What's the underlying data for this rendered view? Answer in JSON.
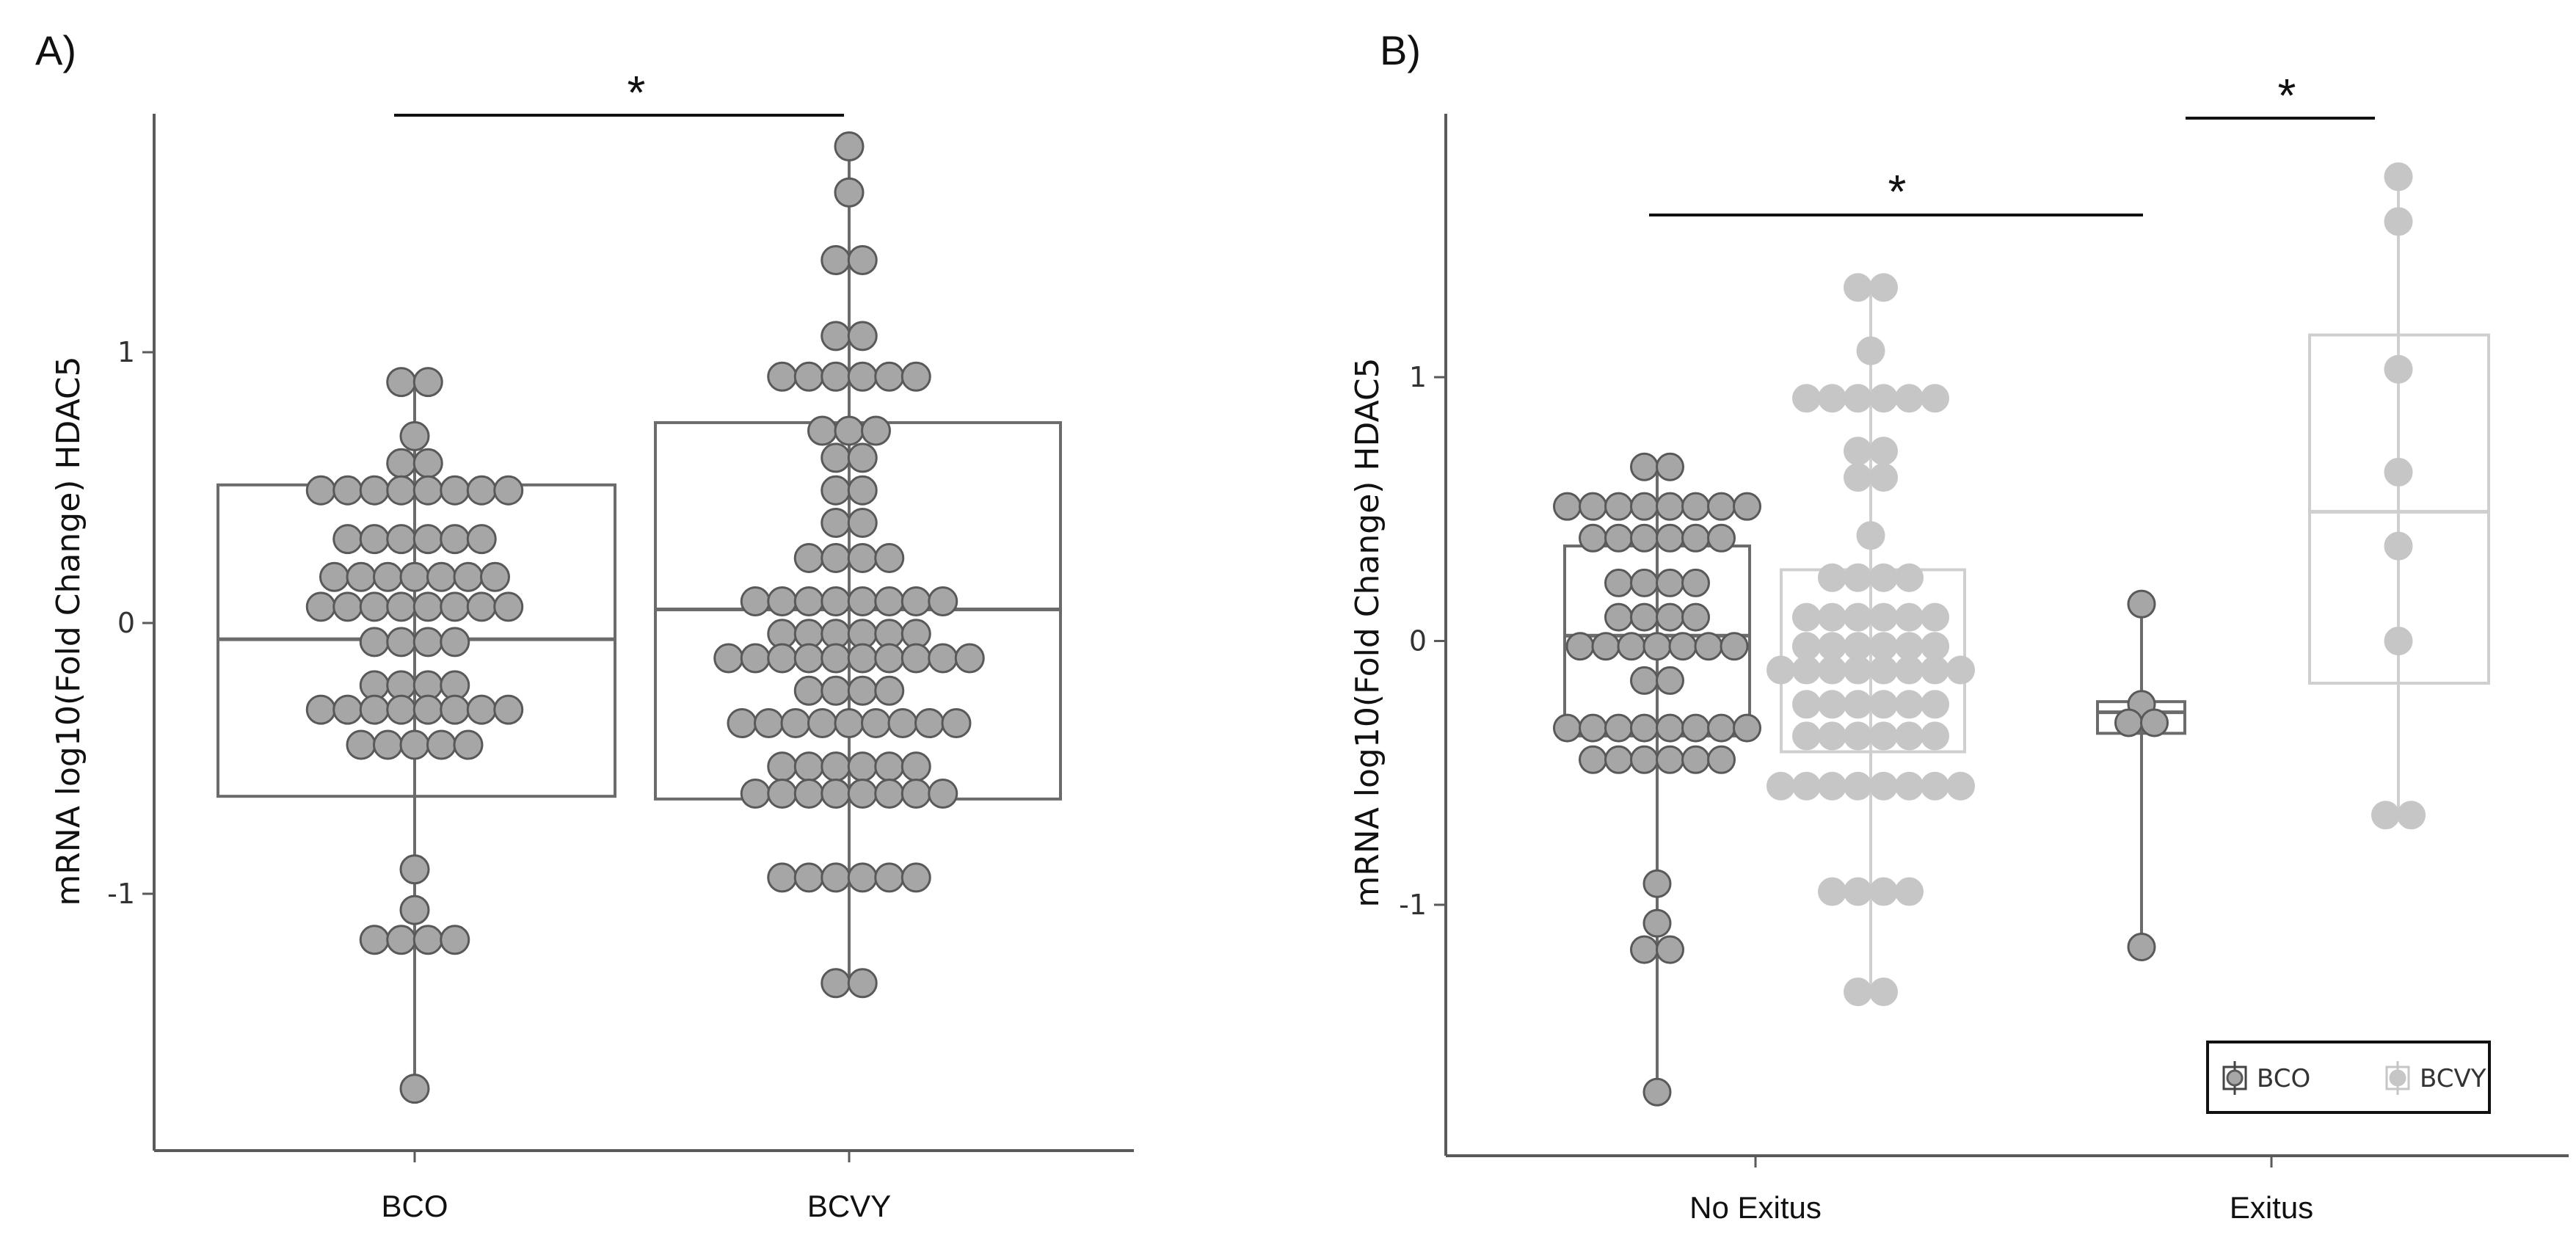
{
  "chart_data": [
    {
      "id": "A",
      "panel_label": "A)",
      "type": "box",
      "ylabel": "mRNA log10(Fold Change) HDAC5",
      "ylim": [
        -1.85,
        1.85
      ],
      "yticks": [
        {
          "v": 1,
          "label": "1"
        },
        {
          "v": 0,
          "label": "0"
        },
        {
          "v": -1,
          "label": "-1"
        }
      ],
      "categories": [
        "BCO",
        "BCVY"
      ],
      "colors": {
        "fill": "#a6a6a6",
        "stroke": "#595959",
        "box": "#6b6b6b",
        "axis": "#5a5a5a"
      },
      "series": [
        {
          "name": "BCO",
          "box": {
            "q1": -0.64,
            "median": -0.06,
            "q3": 0.51,
            "whisker_low": -1.72,
            "whisker_high": 0.89
          },
          "points": [
            {
              "y": 0.89,
              "n": 2
            },
            {
              "y": 0.69,
              "n": 1
            },
            {
              "y": 0.59,
              "n": 2
            },
            {
              "y": 0.49,
              "n": 8
            },
            {
              "y": 0.31,
              "n": 6
            },
            {
              "y": 0.17,
              "n": 7
            },
            {
              "y": 0.06,
              "n": 8
            },
            {
              "y": -0.07,
              "n": 4
            },
            {
              "y": -0.23,
              "n": 4
            },
            {
              "y": -0.32,
              "n": 8
            },
            {
              "y": -0.45,
              "n": 5
            },
            {
              "y": -0.91,
              "n": 1
            },
            {
              "y": -1.06,
              "n": 1
            },
            {
              "y": -1.17,
              "n": 4
            },
            {
              "y": -1.72,
              "n": 1
            }
          ]
        },
        {
          "name": "BCVY",
          "box": {
            "q1": -0.65,
            "median": 0.05,
            "q3": 0.74,
            "whisker_low": -1.33,
            "whisker_high": 1.76
          },
          "points": [
            {
              "y": 1.76,
              "n": 1
            },
            {
              "y": 1.59,
              "n": 1
            },
            {
              "y": 1.34,
              "n": 2
            },
            {
              "y": 1.06,
              "n": 2
            },
            {
              "y": 0.91,
              "n": 6
            },
            {
              "y": 0.71,
              "n": 3
            },
            {
              "y": 0.61,
              "n": 2
            },
            {
              "y": 0.49,
              "n": 2
            },
            {
              "y": 0.37,
              "n": 2
            },
            {
              "y": 0.24,
              "n": 4
            },
            {
              "y": 0.08,
              "n": 8
            },
            {
              "y": -0.04,
              "n": 6
            },
            {
              "y": -0.13,
              "n": 10
            },
            {
              "y": -0.25,
              "n": 4
            },
            {
              "y": -0.37,
              "n": 9
            },
            {
              "y": -0.53,
              "n": 6
            },
            {
              "y": -0.63,
              "n": 8
            },
            {
              "y": -0.94,
              "n": 6
            },
            {
              "y": -1.33,
              "n": 2
            }
          ]
        }
      ],
      "significance": [
        {
          "from": "BCO",
          "to": "BCVY",
          "label": "*"
        }
      ]
    },
    {
      "id": "B",
      "panel_label": "B)",
      "type": "box",
      "ylabel": "mRNA log10(Fold Change) HDAC5",
      "ylim": [
        -1.95,
        2.0
      ],
      "yticks": [
        {
          "v": 1,
          "label": "1"
        },
        {
          "v": 0,
          "label": "0"
        },
        {
          "v": -1,
          "label": "-1"
        }
      ],
      "categories": [
        "No Exitus",
        "Exitus"
      ],
      "legend": {
        "position": "bottom-right",
        "entries": [
          "BCO",
          "BCVY"
        ]
      },
      "colors": {
        "bco_fill": "#a6a6a6",
        "bco_stroke": "#595959",
        "bco_box": "#6b6b6b",
        "bcvy_fill": "#c6c6c6",
        "bcvy_stroke": "#c6c6c6",
        "bcvy_box": "#cfcfcf",
        "axis": "#5a5a5a"
      },
      "series": [
        {
          "name": "BCO",
          "category": "No Exitus",
          "box": {
            "q1": -0.36,
            "median": 0.02,
            "q3": 0.36,
            "whisker_low": -1.71,
            "whisker_high": 0.66
          },
          "points": [
            {
              "y": 0.66,
              "n": 2
            },
            {
              "y": 0.51,
              "n": 8
            },
            {
              "y": 0.39,
              "n": 6
            },
            {
              "y": 0.22,
              "n": 4
            },
            {
              "y": 0.09,
              "n": 4
            },
            {
              "y": -0.02,
              "n": 7
            },
            {
              "y": -0.15,
              "n": 2
            },
            {
              "y": -0.33,
              "n": 8
            },
            {
              "y": -0.45,
              "n": 6
            },
            {
              "y": -0.92,
              "n": 1
            },
            {
              "y": -1.07,
              "n": 1
            },
            {
              "y": -1.17,
              "n": 2
            },
            {
              "y": -1.71,
              "n": 1
            }
          ]
        },
        {
          "name": "BCVY",
          "category": "No Exitus",
          "box": {
            "q1": -0.42,
            "median": -0.09,
            "q3": 0.27,
            "whisker_low": -1.33,
            "whisker_high": 1.34
          },
          "points": [
            {
              "y": 1.34,
              "n": 2
            },
            {
              "y": 1.1,
              "n": 1
            },
            {
              "y": 0.92,
              "n": 6
            },
            {
              "y": 0.72,
              "n": 2
            },
            {
              "y": 0.62,
              "n": 2
            },
            {
              "y": 0.4,
              "n": 1
            },
            {
              "y": 0.24,
              "n": 4
            },
            {
              "y": 0.09,
              "n": 6
            },
            {
              "y": -0.02,
              "n": 6
            },
            {
              "y": -0.11,
              "n": 8
            },
            {
              "y": -0.24,
              "n": 6
            },
            {
              "y": -0.36,
              "n": 6
            },
            {
              "y": -0.55,
              "n": 8
            },
            {
              "y": -0.95,
              "n": 4
            },
            {
              "y": -1.33,
              "n": 2
            }
          ]
        },
        {
          "name": "BCO",
          "category": "Exitus",
          "box": {
            "q1": -0.35,
            "median": -0.27,
            "q3": -0.23,
            "whisker_low": -1.16,
            "whisker_high": 0.14
          },
          "points": [
            {
              "y": 0.14,
              "n": 1
            },
            {
              "y": -0.24,
              "n": 1
            },
            {
              "y": -0.31,
              "n": 2
            },
            {
              "y": -1.16,
              "n": 1
            }
          ]
        },
        {
          "name": "BCVY",
          "category": "Exitus",
          "box": {
            "q1": -0.16,
            "median": 0.49,
            "q3": 1.16,
            "whisker_low": -0.66,
            "whisker_high": 1.76
          },
          "points": [
            {
              "y": 1.76,
              "n": 1
            },
            {
              "y": 1.59,
              "n": 1
            },
            {
              "y": 1.03,
              "n": 1
            },
            {
              "y": 0.64,
              "n": 1
            },
            {
              "y": 0.36,
              "n": 1
            },
            {
              "y": 0.0,
              "n": 1
            },
            {
              "y": -0.66,
              "n": 2
            }
          ]
        }
      ],
      "significance": [
        {
          "from": "No Exitus BCO",
          "to": "Exitus BCO",
          "label": "*"
        },
        {
          "from": "Exitus BCO",
          "to": "Exitus BCVY",
          "label": "*"
        }
      ]
    }
  ]
}
